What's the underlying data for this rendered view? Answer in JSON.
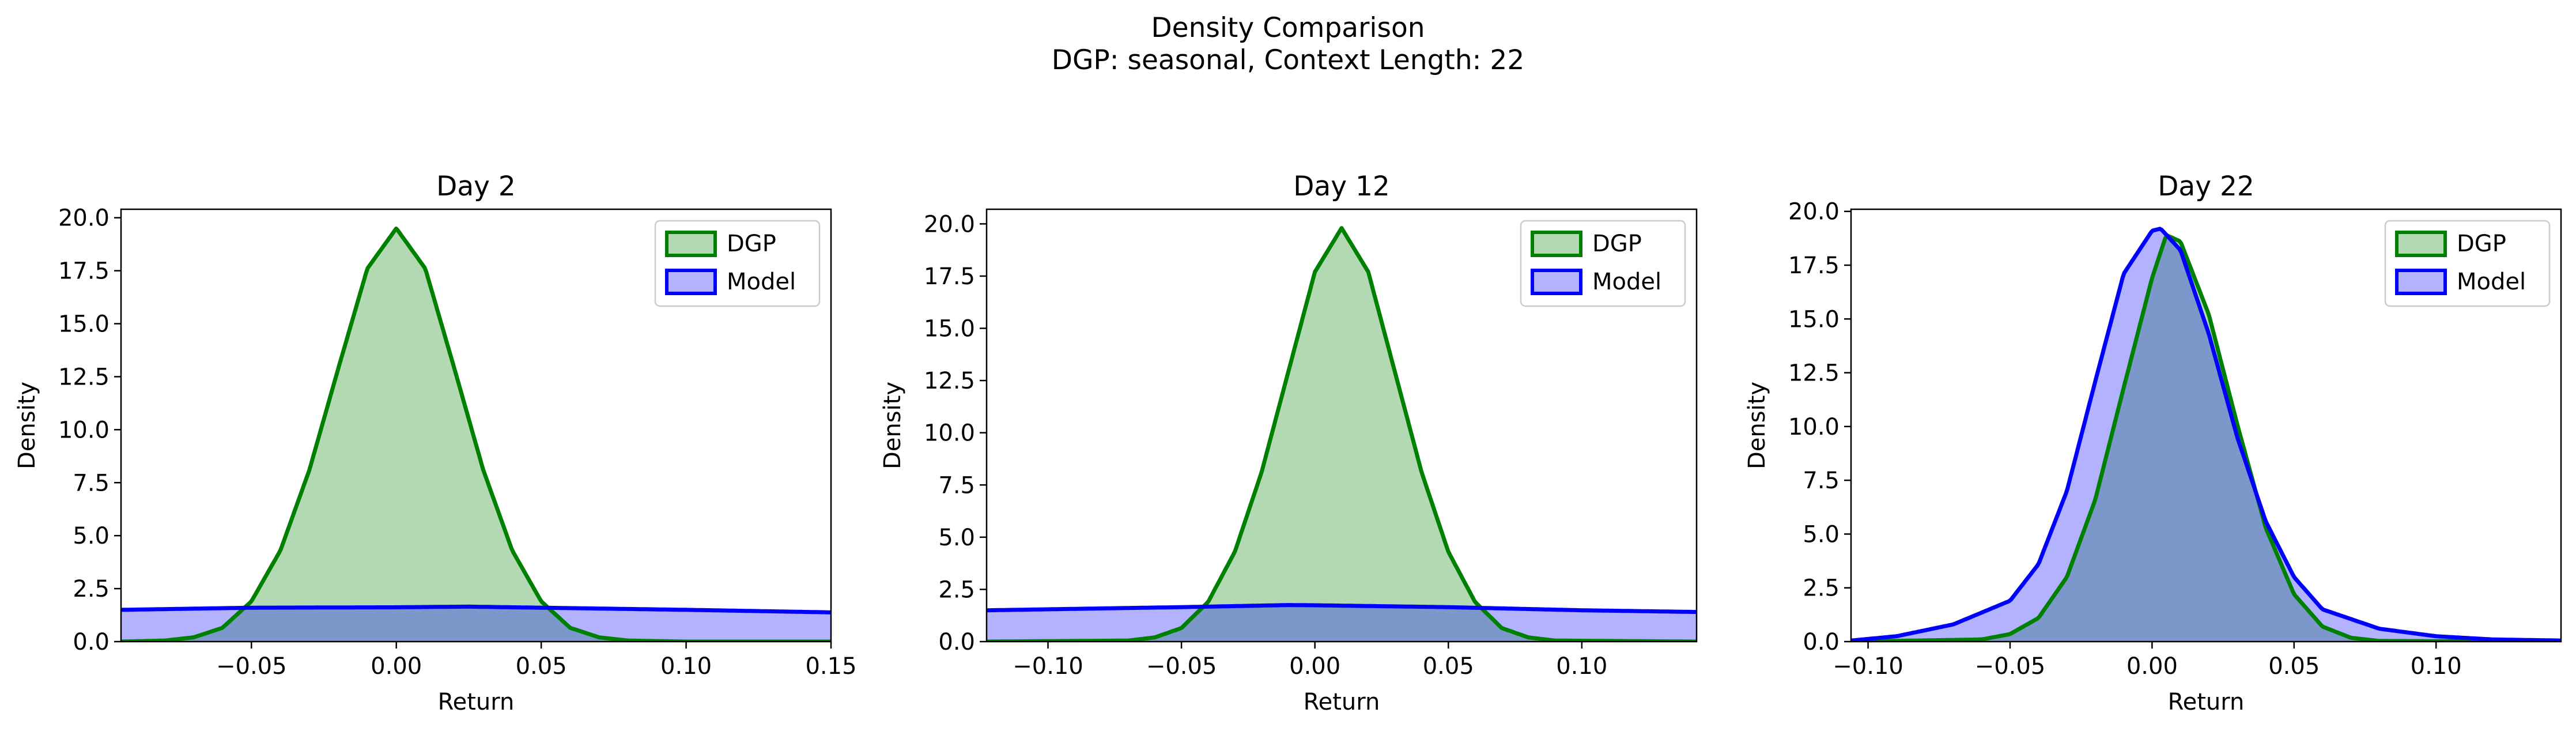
{
  "figure": {
    "title_line1": "Density Comparison",
    "title_line2": "DGP: seasonal, Context Length: 22"
  },
  "colors": {
    "dgp_line": "#008000",
    "dgp_fill": "#b2d8b2",
    "model_line": "#0000ff",
    "model_fill": "#b2b2ff",
    "overlap_fill": "#7f98c8"
  },
  "chart_data": [
    {
      "type": "area",
      "title": "Day 2",
      "xlabel": "Return",
      "ylabel": "Density",
      "xlim": [
        -0.095,
        0.15
      ],
      "ylim": [
        0,
        20.4
      ],
      "xticks": [
        -0.05,
        0.0,
        0.05,
        0.1,
        0.15
      ],
      "xtick_labels": [
        "−0.05",
        "0.00",
        "0.05",
        "0.10",
        "0.15"
      ],
      "yticks": [
        0,
        2.5,
        5,
        7.5,
        10,
        12.5,
        15,
        17.5,
        20
      ],
      "ytick_labels": [
        "0.0",
        "2.5",
        "5.0",
        "7.5",
        "10.0",
        "12.5",
        "15.0",
        "17.5",
        "20.0"
      ],
      "legend": "top-right",
      "series": [
        {
          "name": "DGP",
          "x": [
            -0.095,
            -0.08,
            -0.07,
            -0.06,
            -0.05,
            -0.04,
            -0.03,
            -0.02,
            -0.01,
            0.0,
            0.01,
            0.02,
            0.03,
            0.04,
            0.05,
            0.06,
            0.07,
            0.08,
            0.1,
            0.15
          ],
          "y": [
            0.0,
            0.05,
            0.2,
            0.65,
            1.9,
            4.3,
            8.1,
            12.9,
            17.6,
            19.5,
            17.6,
            12.9,
            8.1,
            4.3,
            1.9,
            0.65,
            0.2,
            0.05,
            0.0,
            0.0
          ]
        },
        {
          "name": "Model",
          "x": [
            -0.095,
            -0.05,
            0.0,
            0.025,
            0.05,
            0.1,
            0.15
          ],
          "y": [
            1.5,
            1.6,
            1.62,
            1.65,
            1.6,
            1.5,
            1.38
          ]
        }
      ]
    },
    {
      "type": "area",
      "title": "Day 12",
      "xlabel": "Return",
      "ylabel": "Density",
      "xlim": [
        -0.123,
        0.143
      ],
      "ylim": [
        0,
        20.7
      ],
      "xticks": [
        -0.1,
        -0.05,
        0.0,
        0.05,
        0.1
      ],
      "xtick_labels": [
        "−0.10",
        "−0.05",
        "0.00",
        "0.05",
        "0.10"
      ],
      "yticks": [
        0,
        2.5,
        5,
        7.5,
        10,
        12.5,
        15,
        17.5,
        20
      ],
      "ytick_labels": [
        "0.0",
        "2.5",
        "5.0",
        "7.5",
        "10.0",
        "12.5",
        "15.0",
        "17.5",
        "20.0"
      ],
      "legend": "top-right",
      "series": [
        {
          "name": "DGP",
          "x": [
            -0.123,
            -0.07,
            -0.06,
            -0.05,
            -0.04,
            -0.03,
            -0.02,
            -0.01,
            0.0,
            0.01,
            0.02,
            0.03,
            0.04,
            0.05,
            0.06,
            0.07,
            0.08,
            0.09,
            0.143
          ],
          "y": [
            0.0,
            0.05,
            0.2,
            0.65,
            1.9,
            4.3,
            8.1,
            12.9,
            17.7,
            19.8,
            17.7,
            12.9,
            8.1,
            4.3,
            1.9,
            0.65,
            0.2,
            0.05,
            0.0
          ]
        },
        {
          "name": "Model",
          "x": [
            -0.123,
            -0.05,
            -0.01,
            0.0,
            0.05,
            0.1,
            0.143
          ],
          "y": [
            1.5,
            1.65,
            1.75,
            1.74,
            1.65,
            1.5,
            1.42
          ]
        }
      ]
    },
    {
      "type": "area",
      "title": "Day 22",
      "xlabel": "Return",
      "ylabel": "Density",
      "xlim": [
        -0.106,
        0.144
      ],
      "ylim": [
        0,
        20.1
      ],
      "xticks": [
        -0.1,
        -0.05,
        0.0,
        0.05,
        0.1
      ],
      "xtick_labels": [
        "−0.10",
        "−0.05",
        "0.00",
        "0.05",
        "0.10"
      ],
      "yticks": [
        0,
        2.5,
        5,
        7.5,
        10,
        12.5,
        15,
        17.5,
        20
      ],
      "ytick_labels": [
        "0.0",
        "2.5",
        "5.0",
        "7.5",
        "10.0",
        "12.5",
        "15.0",
        "17.5",
        "20.0"
      ],
      "legend": "top-right",
      "series": [
        {
          "name": "DGP",
          "x": [
            -0.106,
            -0.06,
            -0.05,
            -0.04,
            -0.03,
            -0.02,
            -0.01,
            0.0,
            0.005,
            0.01,
            0.02,
            0.03,
            0.04,
            0.05,
            0.06,
            0.07,
            0.08,
            0.144
          ],
          "y": [
            0.0,
            0.1,
            0.35,
            1.1,
            3.0,
            6.6,
            11.8,
            16.9,
            18.9,
            18.6,
            15.2,
            10.1,
            5.3,
            2.2,
            0.7,
            0.18,
            0.03,
            0.0
          ]
        },
        {
          "name": "Model",
          "x": [
            -0.106,
            -0.09,
            -0.07,
            -0.05,
            -0.04,
            -0.03,
            -0.02,
            -0.01,
            0.0,
            0.003,
            0.01,
            0.02,
            0.03,
            0.04,
            0.05,
            0.06,
            0.08,
            0.1,
            0.12,
            0.144
          ],
          "y": [
            0.05,
            0.25,
            0.8,
            1.9,
            3.6,
            7.0,
            12.1,
            17.1,
            19.1,
            19.2,
            18.2,
            14.3,
            9.5,
            5.6,
            3.0,
            1.5,
            0.6,
            0.25,
            0.1,
            0.05
          ]
        }
      ]
    }
  ]
}
